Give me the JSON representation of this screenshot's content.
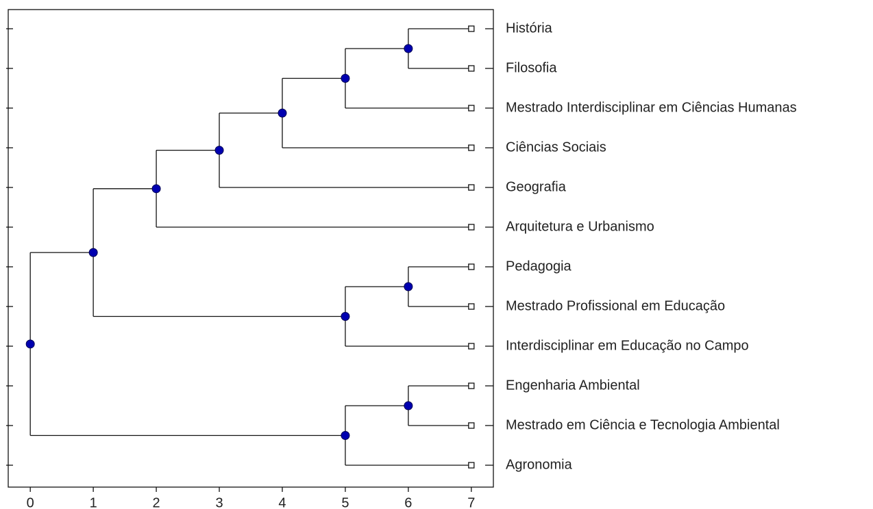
{
  "chart_data": {
    "type": "dendrogram",
    "xlim": [
      -0.35,
      7.35
    ],
    "xticks": [
      0,
      1,
      2,
      3,
      4,
      5,
      6,
      7
    ],
    "node_color": "#0000b0",
    "leaf_color": "#ffffff",
    "tree": {
      "x": 0,
      "children": [
        {
          "x": 1,
          "children": [
            {
              "x": 2,
              "children": [
                {
                  "x": 3,
                  "children": [
                    {
                      "x": 4,
                      "children": [
                        {
                          "x": 5,
                          "children": [
                            {
                              "x": 6,
                              "children": [
                                {
                                  "x": 7,
                                  "label": "História"
                                },
                                {
                                  "x": 7,
                                  "label": "Filosofia"
                                }
                              ]
                            },
                            {
                              "x": 7,
                              "label": "Mestrado Interdisciplinar em Ciências Humanas"
                            }
                          ]
                        },
                        {
                          "x": 7,
                          "label": "Ciências Sociais"
                        }
                      ]
                    },
                    {
                      "x": 7,
                      "label": "Geografia"
                    }
                  ]
                },
                {
                  "x": 7,
                  "label": "Arquitetura e Urbanismo"
                }
              ]
            },
            {
              "x": 5,
              "children": [
                {
                  "x": 6,
                  "children": [
                    {
                      "x": 7,
                      "label": "Pedagogia"
                    },
                    {
                      "x": 7,
                      "label": "Mestrado Profissional em Educação"
                    }
                  ]
                },
                {
                  "x": 7,
                  "label": "Interdisciplinar em Educação no Campo"
                }
              ]
            }
          ]
        },
        {
          "x": 5,
          "children": [
            {
              "x": 6,
              "children": [
                {
                  "x": 7,
                  "label": "Engenharia Ambiental"
                },
                {
                  "x": 7,
                  "label": "Mestrado em Ciência e Tecnologia Ambiental"
                }
              ]
            },
            {
              "x": 7,
              "label": "Agronomia"
            }
          ]
        }
      ]
    }
  }
}
